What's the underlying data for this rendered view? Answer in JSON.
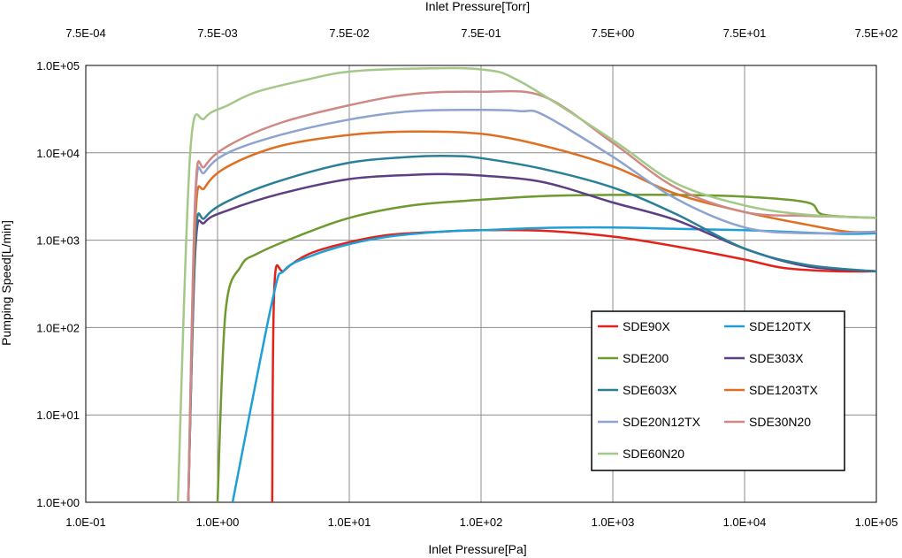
{
  "chart_data": {
    "type": "line",
    "xscale": "log",
    "yscale": "log",
    "xlim": [
      0.1,
      100000
    ],
    "ylim": [
      1,
      100000
    ],
    "x_top_lim": [
      0.00075,
      750
    ],
    "grid": true,
    "legend_position": "lower-right",
    "xlabel": "Inlet Pressure[Pa]",
    "ylabel": "Pumping Speed[L/min]",
    "x_top_label": "Inlet Pressure[Torr]",
    "x_tick_values": [
      0.1,
      1,
      10,
      100,
      1000,
      10000,
      100000
    ],
    "x_tick_labels": [
      "1.0E-01",
      "1.0E+00",
      "1.0E+01",
      "1.0E+02",
      "1.0E+03",
      "1.0E+04",
      "1.0E+05"
    ],
    "x_top_tick_labels": [
      "7.5E-04",
      "7.5E-03",
      "7.5E-02",
      "7.5E-01",
      "7.5E+00",
      "7.5E+01",
      "7.5E+02"
    ],
    "y_tick_values": [
      1,
      10,
      100,
      1000,
      10000,
      100000
    ],
    "y_tick_labels": [
      "1.0E+00",
      "1.0E+01",
      "1.0E+02",
      "1.0E+03",
      "1.0E+04",
      "1.0E+05"
    ],
    "series": [
      {
        "name": "SDE90X",
        "color": "#e2231a",
        "points": [
          [
            2.6,
            1
          ],
          [
            2.7,
            300
          ],
          [
            3.2,
            450
          ],
          [
            5,
            700
          ],
          [
            10,
            950
          ],
          [
            20,
            1150
          ],
          [
            50,
            1250
          ],
          [
            100,
            1300
          ],
          [
            300,
            1280
          ],
          [
            1000,
            1100
          ],
          [
            3000,
            850
          ],
          [
            10000,
            600
          ],
          [
            20000,
            480
          ],
          [
            50000,
            440
          ],
          [
            100000,
            440
          ]
        ]
      },
      {
        "name": "SDE120TX",
        "color": "#1f9fd8",
        "points": [
          [
            1.3,
            1
          ],
          [
            2.6,
            200
          ],
          [
            3.2,
            450
          ],
          [
            5,
            650
          ],
          [
            10,
            900
          ],
          [
            20,
            1100
          ],
          [
            50,
            1250
          ],
          [
            100,
            1300
          ],
          [
            300,
            1380
          ],
          [
            1000,
            1400
          ],
          [
            3000,
            1350
          ],
          [
            10000,
            1300
          ],
          [
            30000,
            1220
          ],
          [
            60000,
            1180
          ],
          [
            100000,
            1200
          ]
        ]
      },
      {
        "name": "SDE200",
        "color": "#6e9a2f",
        "points": [
          [
            1.0,
            1
          ],
          [
            1.15,
            150
          ],
          [
            1.5,
            500
          ],
          [
            2,
            700
          ],
          [
            4,
            1100
          ],
          [
            10,
            1800
          ],
          [
            30,
            2500
          ],
          [
            100,
            2900
          ],
          [
            300,
            3200
          ],
          [
            1000,
            3300
          ],
          [
            3000,
            3300
          ],
          [
            10000,
            3150
          ],
          [
            30000,
            2700
          ],
          [
            40000,
            1950
          ],
          [
            100000,
            1800
          ]
        ]
      },
      {
        "name": "SDE303X",
        "color": "#5d3f83",
        "points": [
          [
            0.6,
            1
          ],
          [
            0.68,
            800
          ],
          [
            0.8,
            1600
          ],
          [
            1.2,
            2200
          ],
          [
            3,
            3400
          ],
          [
            10,
            5000
          ],
          [
            30,
            5600
          ],
          [
            50,
            5700
          ],
          [
            100,
            5500
          ],
          [
            300,
            4600
          ],
          [
            1000,
            2700
          ],
          [
            3000,
            1700
          ],
          [
            10000,
            800
          ],
          [
            30000,
            500
          ],
          [
            100000,
            440
          ]
        ]
      },
      {
        "name": "SDE603X",
        "color": "#2a7f98",
        "points": [
          [
            0.6,
            1
          ],
          [
            0.68,
            1000
          ],
          [
            0.8,
            1800
          ],
          [
            1.2,
            2800
          ],
          [
            3,
            4800
          ],
          [
            10,
            7700
          ],
          [
            30,
            9000
          ],
          [
            60,
            9200
          ],
          [
            100,
            8700
          ],
          [
            300,
            6500
          ],
          [
            1000,
            4000
          ],
          [
            3000,
            2000
          ],
          [
            10000,
            800
          ],
          [
            30000,
            520
          ],
          [
            100000,
            440
          ]
        ]
      },
      {
        "name": "SDE1203TX",
        "color": "#df6f22",
        "points": [
          [
            0.6,
            1
          ],
          [
            0.68,
            1800
          ],
          [
            0.8,
            4000
          ],
          [
            1.2,
            7000
          ],
          [
            3,
            12000
          ],
          [
            10,
            16000
          ],
          [
            30,
            17500
          ],
          [
            100,
            16500
          ],
          [
            300,
            12000
          ],
          [
            1000,
            7000
          ],
          [
            3000,
            3400
          ],
          [
            10000,
            2100
          ],
          [
            30000,
            1500
          ],
          [
            60000,
            1250
          ],
          [
            100000,
            1250
          ]
        ]
      },
      {
        "name": "SDE20N12TX",
        "color": "#8ea3cf",
        "points": [
          [
            0.6,
            1
          ],
          [
            0.68,
            3000
          ],
          [
            0.8,
            6000
          ],
          [
            1.2,
            10000
          ],
          [
            3,
            16000
          ],
          [
            10,
            24000
          ],
          [
            30,
            30000
          ],
          [
            100,
            31000
          ],
          [
            200,
            30000
          ],
          [
            300,
            27000
          ],
          [
            1000,
            9000
          ],
          [
            3000,
            3000
          ],
          [
            10000,
            1400
          ],
          [
            30000,
            1200
          ],
          [
            100000,
            1250
          ]
        ]
      },
      {
        "name": "SDE30N20",
        "color": "#d08885",
        "points": [
          [
            0.6,
            1
          ],
          [
            0.68,
            3500
          ],
          [
            0.8,
            7000
          ],
          [
            1.2,
            12000
          ],
          [
            3,
            22000
          ],
          [
            10,
            35000
          ],
          [
            30,
            47000
          ],
          [
            100,
            50000
          ],
          [
            300,
            44000
          ],
          [
            1000,
            13000
          ],
          [
            3000,
            4000
          ],
          [
            10000,
            2100
          ],
          [
            30000,
            1900
          ],
          [
            60000,
            1850
          ],
          [
            100000,
            1800
          ]
        ]
      },
      {
        "name": "SDE60N20",
        "color": "#a3c887",
        "points": [
          [
            0.5,
            1
          ],
          [
            0.62,
            10000
          ],
          [
            0.8,
            25000
          ],
          [
            1.2,
            35000
          ],
          [
            2,
            50000
          ],
          [
            5,
            70000
          ],
          [
            10,
            85000
          ],
          [
            30,
            92000
          ],
          [
            100,
            90000
          ],
          [
            200,
            65000
          ],
          [
            1000,
            14000
          ],
          [
            3000,
            4500
          ],
          [
            10000,
            2500
          ],
          [
            30000,
            1950
          ],
          [
            100000,
            1800
          ]
        ]
      }
    ]
  }
}
